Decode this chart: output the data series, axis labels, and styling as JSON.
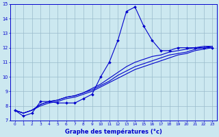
{
  "hours": [
    0,
    1,
    2,
    3,
    4,
    5,
    6,
    7,
    8,
    9,
    10,
    11,
    12,
    13,
    14,
    15,
    16,
    17,
    18,
    19,
    20,
    21,
    22,
    23
  ],
  "main_line": [
    7.7,
    7.3,
    7.5,
    8.3,
    8.3,
    8.2,
    8.2,
    8.2,
    8.5,
    8.8,
    10.0,
    11.0,
    12.5,
    14.5,
    14.8,
    13.5,
    12.5,
    11.8,
    11.8,
    12.0,
    12.0,
    12.0,
    12.0,
    12.0
  ],
  "reg1": [
    7.7,
    7.5,
    7.7,
    8.0,
    8.2,
    8.3,
    8.5,
    8.6,
    8.8,
    9.0,
    9.3,
    9.6,
    9.9,
    10.2,
    10.5,
    10.7,
    10.9,
    11.1,
    11.3,
    11.5,
    11.6,
    11.8,
    11.9,
    12.0
  ],
  "reg2": [
    7.7,
    7.5,
    7.7,
    8.1,
    8.3,
    8.4,
    8.6,
    8.7,
    8.9,
    9.1,
    9.4,
    9.7,
    10.1,
    10.4,
    10.7,
    10.9,
    11.1,
    11.3,
    11.5,
    11.6,
    11.7,
    11.9,
    12.0,
    12.1
  ],
  "reg3": [
    7.7,
    7.5,
    7.7,
    8.1,
    8.3,
    8.4,
    8.6,
    8.7,
    8.9,
    9.2,
    9.5,
    9.9,
    10.3,
    10.7,
    11.0,
    11.2,
    11.4,
    11.5,
    11.7,
    11.8,
    11.9,
    12.0,
    12.1,
    12.1
  ],
  "bg_color": "#cce8f0",
  "line_color": "#0000cc",
  "grid_color": "#99bbcc",
  "xlabel": "Graphe des températures (°c)",
  "ylim": [
    7,
    15
  ],
  "xlim": [
    0,
    23
  ],
  "yticks": [
    7,
    8,
    9,
    10,
    11,
    12,
    13,
    14,
    15
  ],
  "xticks": [
    0,
    1,
    2,
    3,
    4,
    5,
    6,
    7,
    8,
    9,
    10,
    11,
    12,
    13,
    14,
    15,
    16,
    17,
    18,
    19,
    20,
    21,
    22,
    23
  ]
}
